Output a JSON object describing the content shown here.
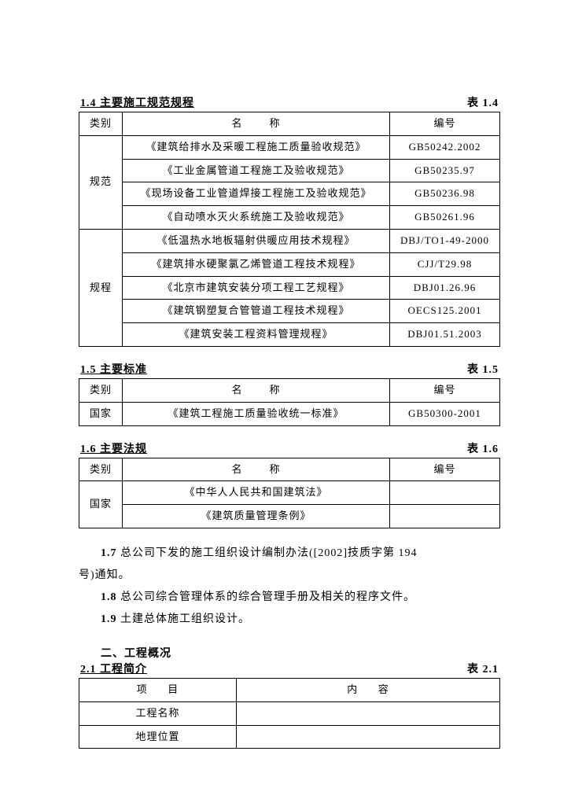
{
  "section14": {
    "title": "1.4 主要施工规范规程",
    "tab_label": "表 1.4",
    "headers": {
      "cat": "类别",
      "name": "名",
      "name2": "称",
      "code": "编号"
    },
    "group1": {
      "cat": "规范",
      "rows": [
        {
          "name": "《建筑给排水及采暖工程施工质量验收规范》",
          "code": "GB50242.2002"
        },
        {
          "name": "《工业金属管道工程施工及验收规范》",
          "code": "GB50235.97"
        },
        {
          "name": "《现场设备工业管道焊接工程施工及验收规范》",
          "code": "GB50236.98"
        },
        {
          "name": "《自动喷水灭火系统施工及验收规范》",
          "code": "GB50261.96"
        }
      ]
    },
    "group2": {
      "cat": "规程",
      "rows": [
        {
          "name": "《低温热水地板辐射供暖应用技术规程》",
          "code": "DBJ/TO1-49-2000"
        },
        {
          "name": "《建筑排水硬聚氯乙烯管道工程技术规程》",
          "code": "CJJ/T29.98"
        },
        {
          "name": "《北京市建筑安装分项工程工艺规程》",
          "code": "DBJ01.26.96"
        },
        {
          "name": "《建筑钢塑复合管管道工程技术规程》",
          "code": "OECS125.2001"
        },
        {
          "name": "《建筑安装工程资料管理规程》",
          "code": "DBJ01.51.2003"
        }
      ]
    }
  },
  "section15": {
    "title": "1.5 主要标准",
    "tab_label": "表 1.5",
    "headers": {
      "cat": "类别",
      "name": "名",
      "name2": "称",
      "code": "编号"
    },
    "rows": [
      {
        "cat": "国家",
        "name": "《建筑工程施工质量验收统一标准》",
        "code": "GB50300-2001"
      }
    ]
  },
  "section16": {
    "title": "1.6 主要法规",
    "tab_label": "表 1.6",
    "headers": {
      "cat": "类别",
      "name": "名",
      "name2": "称",
      "code": "编号"
    },
    "group": {
      "cat": "国家",
      "rows": [
        {
          "name": "《中华人人民共和国建筑法》",
          "code": ""
        },
        {
          "name": "《建筑质量管理条例》",
          "code": ""
        }
      ]
    }
  },
  "para17": {
    "num": "1.7",
    "text_a": " 总公司下发的施工组织设计编制办法([2002]技质字第 194",
    "text_b": "号)通知。"
  },
  "para18": {
    "num": "1.8",
    "text": " 总公司综合管理体系的综合管理手册及相关的程序文件。"
  },
  "para19": {
    "num": "1.9",
    "text": " 土建总体施工组织设计。"
  },
  "section2_head": "二、工程概况",
  "section21": {
    "title": "2.1 工程简介",
    "tab_label": "表 2.1",
    "headers": {
      "item": "项",
      "item2": "目",
      "content": "内",
      "content2": "容"
    },
    "rows": [
      {
        "item": "工程名称",
        "content": ""
      },
      {
        "item": "地理位置",
        "content": ""
      }
    ]
  }
}
